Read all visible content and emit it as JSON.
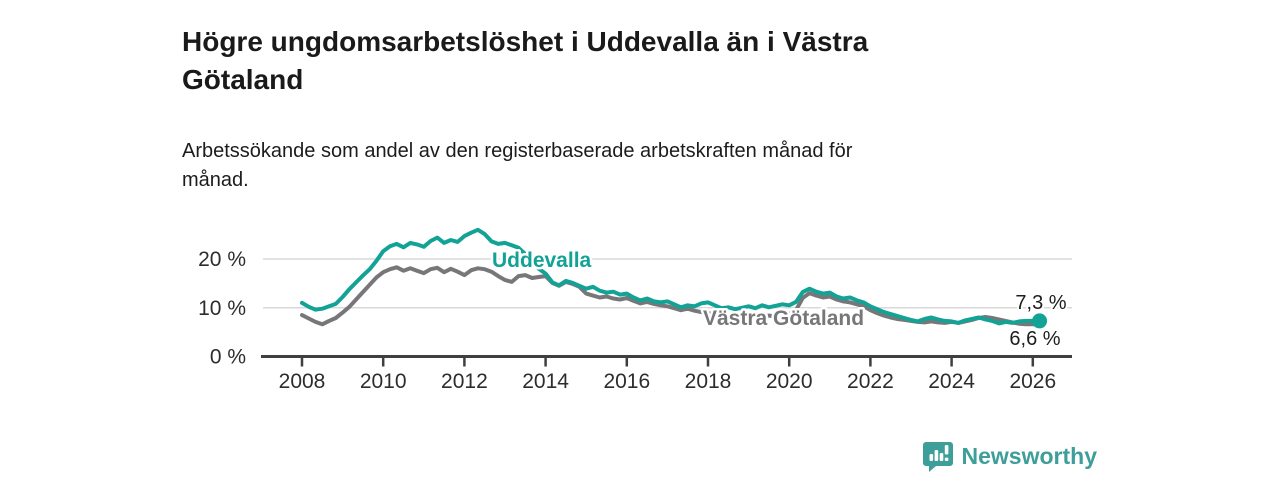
{
  "header": {
    "title_lines": [
      "Högre ungdomsarbetslöshet i Uddevalla än i Västra",
      "Götaland"
    ],
    "subtitle_lines": [
      "Arbetssökande som andel av den registerbaserade arbetskraften månad för",
      "månad."
    ]
  },
  "chart_data": {
    "type": "line",
    "title": "Högre ungdomsarbetslöshet i Uddevalla än i Västra Götaland",
    "subtitle": "Arbetssökande som andel av den registerbaserade arbetskraften månad för månad.",
    "x_start_year": 2008,
    "points_per_year": 6,
    "x_tick_years": [
      2008,
      2010,
      2012,
      2014,
      2016,
      2018,
      2020,
      2022,
      2024,
      2026
    ],
    "y_ticks": [
      {
        "value": 0,
        "label": "0 %"
      },
      {
        "value": 10,
        "label": "10 %"
      },
      {
        "value": 20,
        "label": "20 %"
      }
    ],
    "ylim": [
      0,
      27
    ],
    "grid": "horizontal",
    "legend_position": "inline-labels",
    "colors": {
      "uddevalla": "#12a296",
      "vastra_gotaland": "#77777a",
      "axis": "#3f3f3f",
      "gridline": "#d8d8d8",
      "tick_text": "#2d2d2d",
      "annotation_text": "#1d1d1d"
    },
    "series": [
      {
        "name": "Uddevalla",
        "color": "#12a296",
        "end_value": 7.3,
        "end_label": "7,3 %",
        "values": [
          11.0,
          10.2,
          9.6,
          9.8,
          10.3,
          10.8,
          12.2,
          13.8,
          15.2,
          16.6,
          17.9,
          19.6,
          21.6,
          22.6,
          23.1,
          22.4,
          23.3,
          23.0,
          22.5,
          23.7,
          24.4,
          23.3,
          23.9,
          23.5,
          24.7,
          25.4,
          26.0,
          25.1,
          23.6,
          23.1,
          23.3,
          22.8,
          22.3,
          21.0,
          19.4,
          18.0,
          17.0,
          15.2,
          14.6,
          15.5,
          15.1,
          14.5,
          13.9,
          14.3,
          13.5,
          13.1,
          13.3,
          12.7,
          12.9,
          12.1,
          11.5,
          11.9,
          11.3,
          11.1,
          11.3,
          10.7,
          10.1,
          10.5,
          10.3,
          10.9,
          11.1,
          10.5,
          9.9,
          10.1,
          9.7,
          10.0,
          10.3,
          9.9,
          10.5,
          10.1,
          10.4,
          10.7,
          10.5,
          11.2,
          13.2,
          13.9,
          13.3,
          12.9,
          13.1,
          12.3,
          11.9,
          12.1,
          11.5,
          11.1,
          10.3,
          9.7,
          9.1,
          8.7,
          8.3,
          7.9,
          7.5,
          7.2,
          7.7,
          8.0,
          7.6,
          7.3,
          7.2,
          6.9,
          7.4,
          7.7,
          8.0,
          7.6,
          7.3,
          6.8,
          7.1,
          6.9,
          7.2,
          7.3,
          7.3,
          7.3
        ]
      },
      {
        "name": "Västra Götaland",
        "color": "#77777a",
        "end_value": 6.6,
        "end_label": "6,6 %",
        "values": [
          8.5,
          7.8,
          7.1,
          6.6,
          7.3,
          7.9,
          9.0,
          10.2,
          11.7,
          13.2,
          14.7,
          16.2,
          17.3,
          17.9,
          18.3,
          17.6,
          18.1,
          17.6,
          17.1,
          17.9,
          18.2,
          17.3,
          18.0,
          17.4,
          16.7,
          17.7,
          18.1,
          17.9,
          17.4,
          16.5,
          15.7,
          15.3,
          16.5,
          16.7,
          16.1,
          16.3,
          16.5,
          15.1,
          14.5,
          15.3,
          14.9,
          14.3,
          12.9,
          12.5,
          12.1,
          12.3,
          11.9,
          11.7,
          12.0,
          11.4,
          10.9,
          11.2,
          10.8,
          10.5,
          10.3,
          9.9,
          9.5,
          9.8,
          9.4,
          9.1,
          8.9,
          8.6,
          8.3,
          8.5,
          8.2,
          8.4,
          8.6,
          8.3,
          8.1,
          8.4,
          8.2,
          8.5,
          8.7,
          9.5,
          12.0,
          13.0,
          12.5,
          12.1,
          12.3,
          11.7,
          11.3,
          11.1,
          10.7,
          10.3,
          9.5,
          8.9,
          8.4,
          8.0,
          7.7,
          7.5,
          7.3,
          7.1,
          7.0,
          7.2,
          7.0,
          6.9,
          7.1,
          6.9,
          7.2,
          7.5,
          7.9,
          8.1,
          7.9,
          7.6,
          7.3,
          7.0,
          6.7,
          6.6,
          6.6,
          6.6
        ]
      }
    ]
  },
  "footer": {
    "brand": "Newsworthy"
  }
}
